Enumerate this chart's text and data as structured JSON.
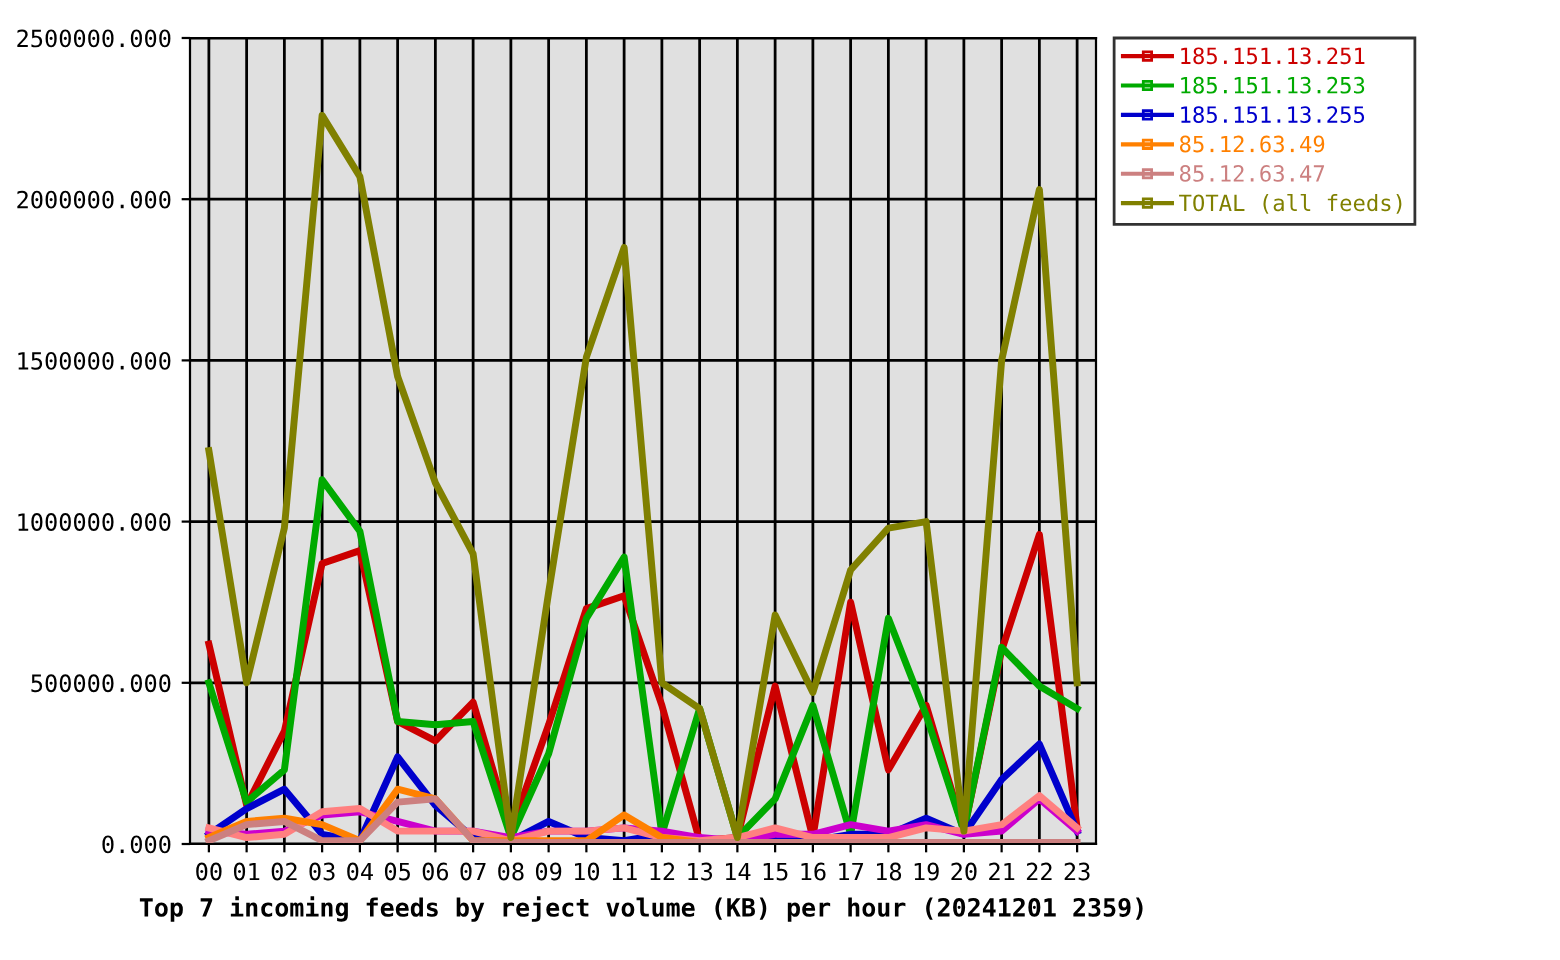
{
  "chart_data": {
    "type": "line",
    "xlabel": "Top 7 incoming feeds by reject volume (KB) per hour (20241201 2359)",
    "categories": [
      "00",
      "01",
      "02",
      "03",
      "04",
      "05",
      "06",
      "07",
      "08",
      "09",
      "10",
      "11",
      "12",
      "13",
      "14",
      "15",
      "16",
      "17",
      "18",
      "19",
      "20",
      "21",
      "22",
      "23"
    ],
    "ylim": [
      0,
      2500000
    ],
    "yticks": [
      {
        "value": 0,
        "label": "0.000"
      },
      {
        "value": 500000,
        "label": "500000.000"
      },
      {
        "value": 1000000,
        "label": "1000000.000"
      },
      {
        "value": 1500000,
        "label": "1500000.000"
      },
      {
        "value": 2000000,
        "label": "2000000.000"
      },
      {
        "value": 2500000,
        "label": "2500000.000"
      }
    ],
    "grid": true,
    "legend": "right",
    "marker": "none",
    "line_style": "solid",
    "series": [
      {
        "name": "185.151.13.251",
        "color": "#cc0000",
        "values": [
          620000,
          120000,
          350000,
          870000,
          910000,
          380000,
          320000,
          440000,
          40000,
          370000,
          730000,
          770000,
          430000,
          10000,
          20000,
          490000,
          20000,
          750000,
          230000,
          430000,
          40000,
          600000,
          960000,
          50000
        ]
      },
      {
        "name": "185.151.13.253",
        "color": "#00aa00",
        "values": [
          500000,
          130000,
          230000,
          1130000,
          970000,
          380000,
          370000,
          380000,
          20000,
          280000,
          700000,
          890000,
          30000,
          420000,
          20000,
          140000,
          430000,
          30000,
          700000,
          400000,
          40000,
          610000,
          490000,
          420000
        ]
      },
      {
        "name": "185.151.13.255",
        "color": "#0000cc",
        "values": [
          30000,
          110000,
          170000,
          30000,
          10000,
          270000,
          120000,
          20000,
          10000,
          70000,
          20000,
          10000,
          30000,
          10000,
          10000,
          10000,
          10000,
          30000,
          30000,
          80000,
          30000,
          200000,
          310000,
          40000
        ]
      },
      {
        "color": "#cc00cc",
        "values": [
          40000,
          30000,
          40000,
          90000,
          100000,
          70000,
          40000,
          40000,
          20000,
          40000,
          40000,
          50000,
          40000,
          20000,
          10000,
          30000,
          30000,
          60000,
          40000,
          60000,
          30000,
          40000,
          140000,
          40000
        ]
      },
      {
        "color": "#ff8080",
        "values": [
          50000,
          20000,
          30000,
          100000,
          110000,
          40000,
          40000,
          40000,
          10000,
          40000,
          40000,
          50000,
          20000,
          10000,
          20000,
          50000,
          20000,
          20000,
          20000,
          50000,
          40000,
          60000,
          150000,
          50000
        ]
      },
      {
        "name": "85.12.63.49",
        "color": "#ff8000",
        "values": [
          20000,
          70000,
          80000,
          60000,
          10000,
          170000,
          140000,
          10000,
          10000,
          10000,
          10000,
          90000,
          20000,
          5000,
          5000,
          null,
          null,
          null,
          null,
          null,
          null,
          null,
          null,
          null
        ]
      },
      {
        "name": "85.12.63.47",
        "color": "#cc8080",
        "values": [
          10000,
          60000,
          70000,
          10000,
          10000,
          130000,
          140000,
          10000,
          5000,
          5000,
          5000,
          5000,
          5000,
          5000,
          5000,
          5000,
          5000,
          5000,
          5000,
          5000,
          5000,
          5000,
          5000,
          5000
        ]
      },
      {
        "name": "TOTAL (all feeds)",
        "color": "#808000",
        "values": [
          1220000,
          500000,
          980000,
          2260000,
          2070000,
          1450000,
          1120000,
          900000,
          20000,
          780000,
          1510000,
          1850000,
          500000,
          420000,
          20000,
          710000,
          470000,
          850000,
          980000,
          1000000,
          40000,
          1500000,
          2030000,
          500000
        ]
      }
    ]
  }
}
